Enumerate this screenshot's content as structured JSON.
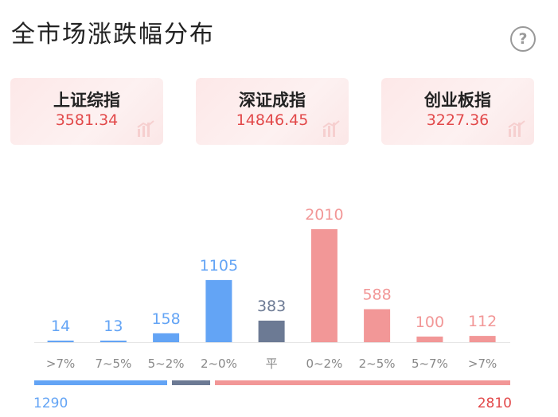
{
  "header": {
    "title": "全市场涨跌幅分布",
    "help_glyph": "?"
  },
  "indices": [
    {
      "name": "上证综指",
      "value": "3581.34"
    },
    {
      "name": "深证成指",
      "value": "14846.45"
    },
    {
      "name": "创业板指",
      "value": "3227.36"
    }
  ],
  "colors": {
    "down": "#63a4f5",
    "flat": "#6c7a94",
    "up": "#f29797",
    "value_red": "#e2494a"
  },
  "chart_data": {
    "type": "bar",
    "categories": [
      ">7%",
      "7~5%",
      "5~2%",
      "2~0%",
      "平",
      "0~2%",
      "2~5%",
      "5~7%",
      ">7%"
    ],
    "values": [
      14,
      13,
      158,
      1105,
      383,
      2010,
      588,
      100,
      112
    ],
    "groups": [
      "down",
      "down",
      "down",
      "down",
      "flat",
      "up",
      "up",
      "up",
      "up"
    ],
    "ylim": [
      0,
      2010
    ]
  },
  "summary": {
    "down_total": "1290",
    "up_total": "2810"
  }
}
